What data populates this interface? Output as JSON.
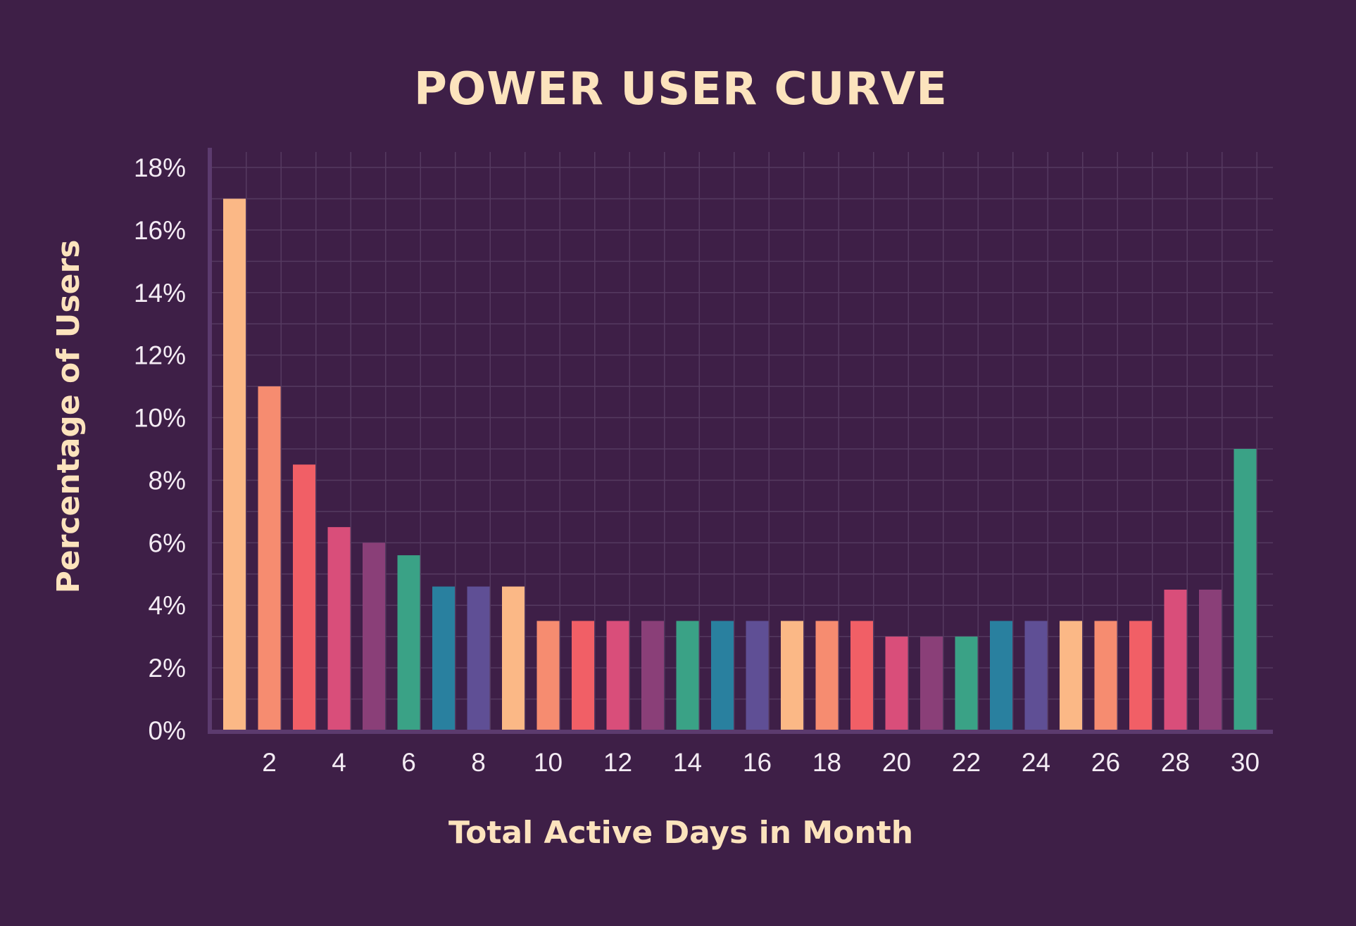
{
  "chart_data": {
    "type": "bar",
    "title": "POWER USER CURVE",
    "xlabel": "Total Active Days in Month",
    "ylabel": "Percentage of Users",
    "x": [
      1,
      2,
      3,
      4,
      5,
      6,
      7,
      8,
      9,
      10,
      11,
      12,
      13,
      14,
      15,
      16,
      17,
      18,
      19,
      20,
      21,
      22,
      23,
      24,
      25,
      26,
      27,
      28,
      29,
      30
    ],
    "values": [
      17,
      11,
      8.5,
      6.5,
      6,
      5.6,
      4.6,
      4.6,
      4.6,
      3.5,
      3.5,
      3.5,
      3.5,
      3.5,
      3.5,
      3.5,
      3.5,
      3.5,
      3.5,
      3,
      3,
      3,
      3.5,
      3.5,
      3.5,
      3.5,
      3.5,
      4.5,
      4.5,
      9
    ],
    "x_tick_labels": [
      "2",
      "4",
      "6",
      "8",
      "10",
      "12",
      "14",
      "16",
      "18",
      "20",
      "22",
      "24",
      "26",
      "28",
      "30"
    ],
    "y_tick_labels": [
      "0%",
      "2%",
      "4%",
      "6%",
      "8%",
      "10%",
      "12%",
      "14%",
      "16%",
      "18%"
    ],
    "ylim": [
      0,
      18
    ],
    "y_unit": "%",
    "grid": true,
    "legend": "none",
    "colors": {
      "background": "#3e1f47",
      "grid": "#553a60",
      "axis": "#5c3b6e",
      "title": "#fce3bd",
      "tick_labels": "#f4ecf4",
      "bars": [
        "#fbb886",
        "#f68c70",
        "#f15f66",
        "#d94e7a",
        "#8a3f78",
        "#3aa286",
        "#29809f",
        "#5f4f95"
      ]
    }
  }
}
